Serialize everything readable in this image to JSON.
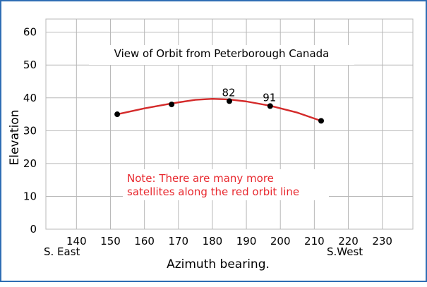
{
  "chart_data": {
    "type": "scatter",
    "title": "View of Orbit from Peterborough Canada",
    "xlabel": "Azimuth bearing.",
    "ylabel": "Elevation",
    "xlim": [
      131,
      239
    ],
    "ylim": [
      0,
      64
    ],
    "xticks": [
      140,
      150,
      160,
      170,
      180,
      190,
      200,
      210,
      220,
      230
    ],
    "yticks": [
      0,
      10,
      20,
      30,
      40,
      50,
      60
    ],
    "x_direction_labels": {
      "left": "S. East",
      "right": "S.West"
    },
    "grid": true,
    "points": [
      {
        "x": 152,
        "y": 35,
        "label": ""
      },
      {
        "x": 168,
        "y": 38,
        "label": ""
      },
      {
        "x": 185,
        "y": 39,
        "label": "82"
      },
      {
        "x": 197,
        "y": 37.5,
        "label": "91"
      },
      {
        "x": 212,
        "y": 33,
        "label": ""
      }
    ],
    "orbit_line": {
      "color": "#d42a2a",
      "x": [
        152,
        160,
        168,
        175,
        180,
        185,
        190,
        197,
        205,
        212
      ],
      "y": [
        35,
        36.8,
        38.3,
        39.4,
        39.7,
        39.5,
        38.9,
        37.6,
        35.5,
        33
      ]
    },
    "annotation": {
      "lines": [
        "Note: There are many more",
        "satellites along the red orbit line"
      ],
      "color": "#e8282e"
    },
    "colors": {
      "grid": "#b8b8b8",
      "border": "#2e6db4",
      "points": "#000000"
    }
  }
}
